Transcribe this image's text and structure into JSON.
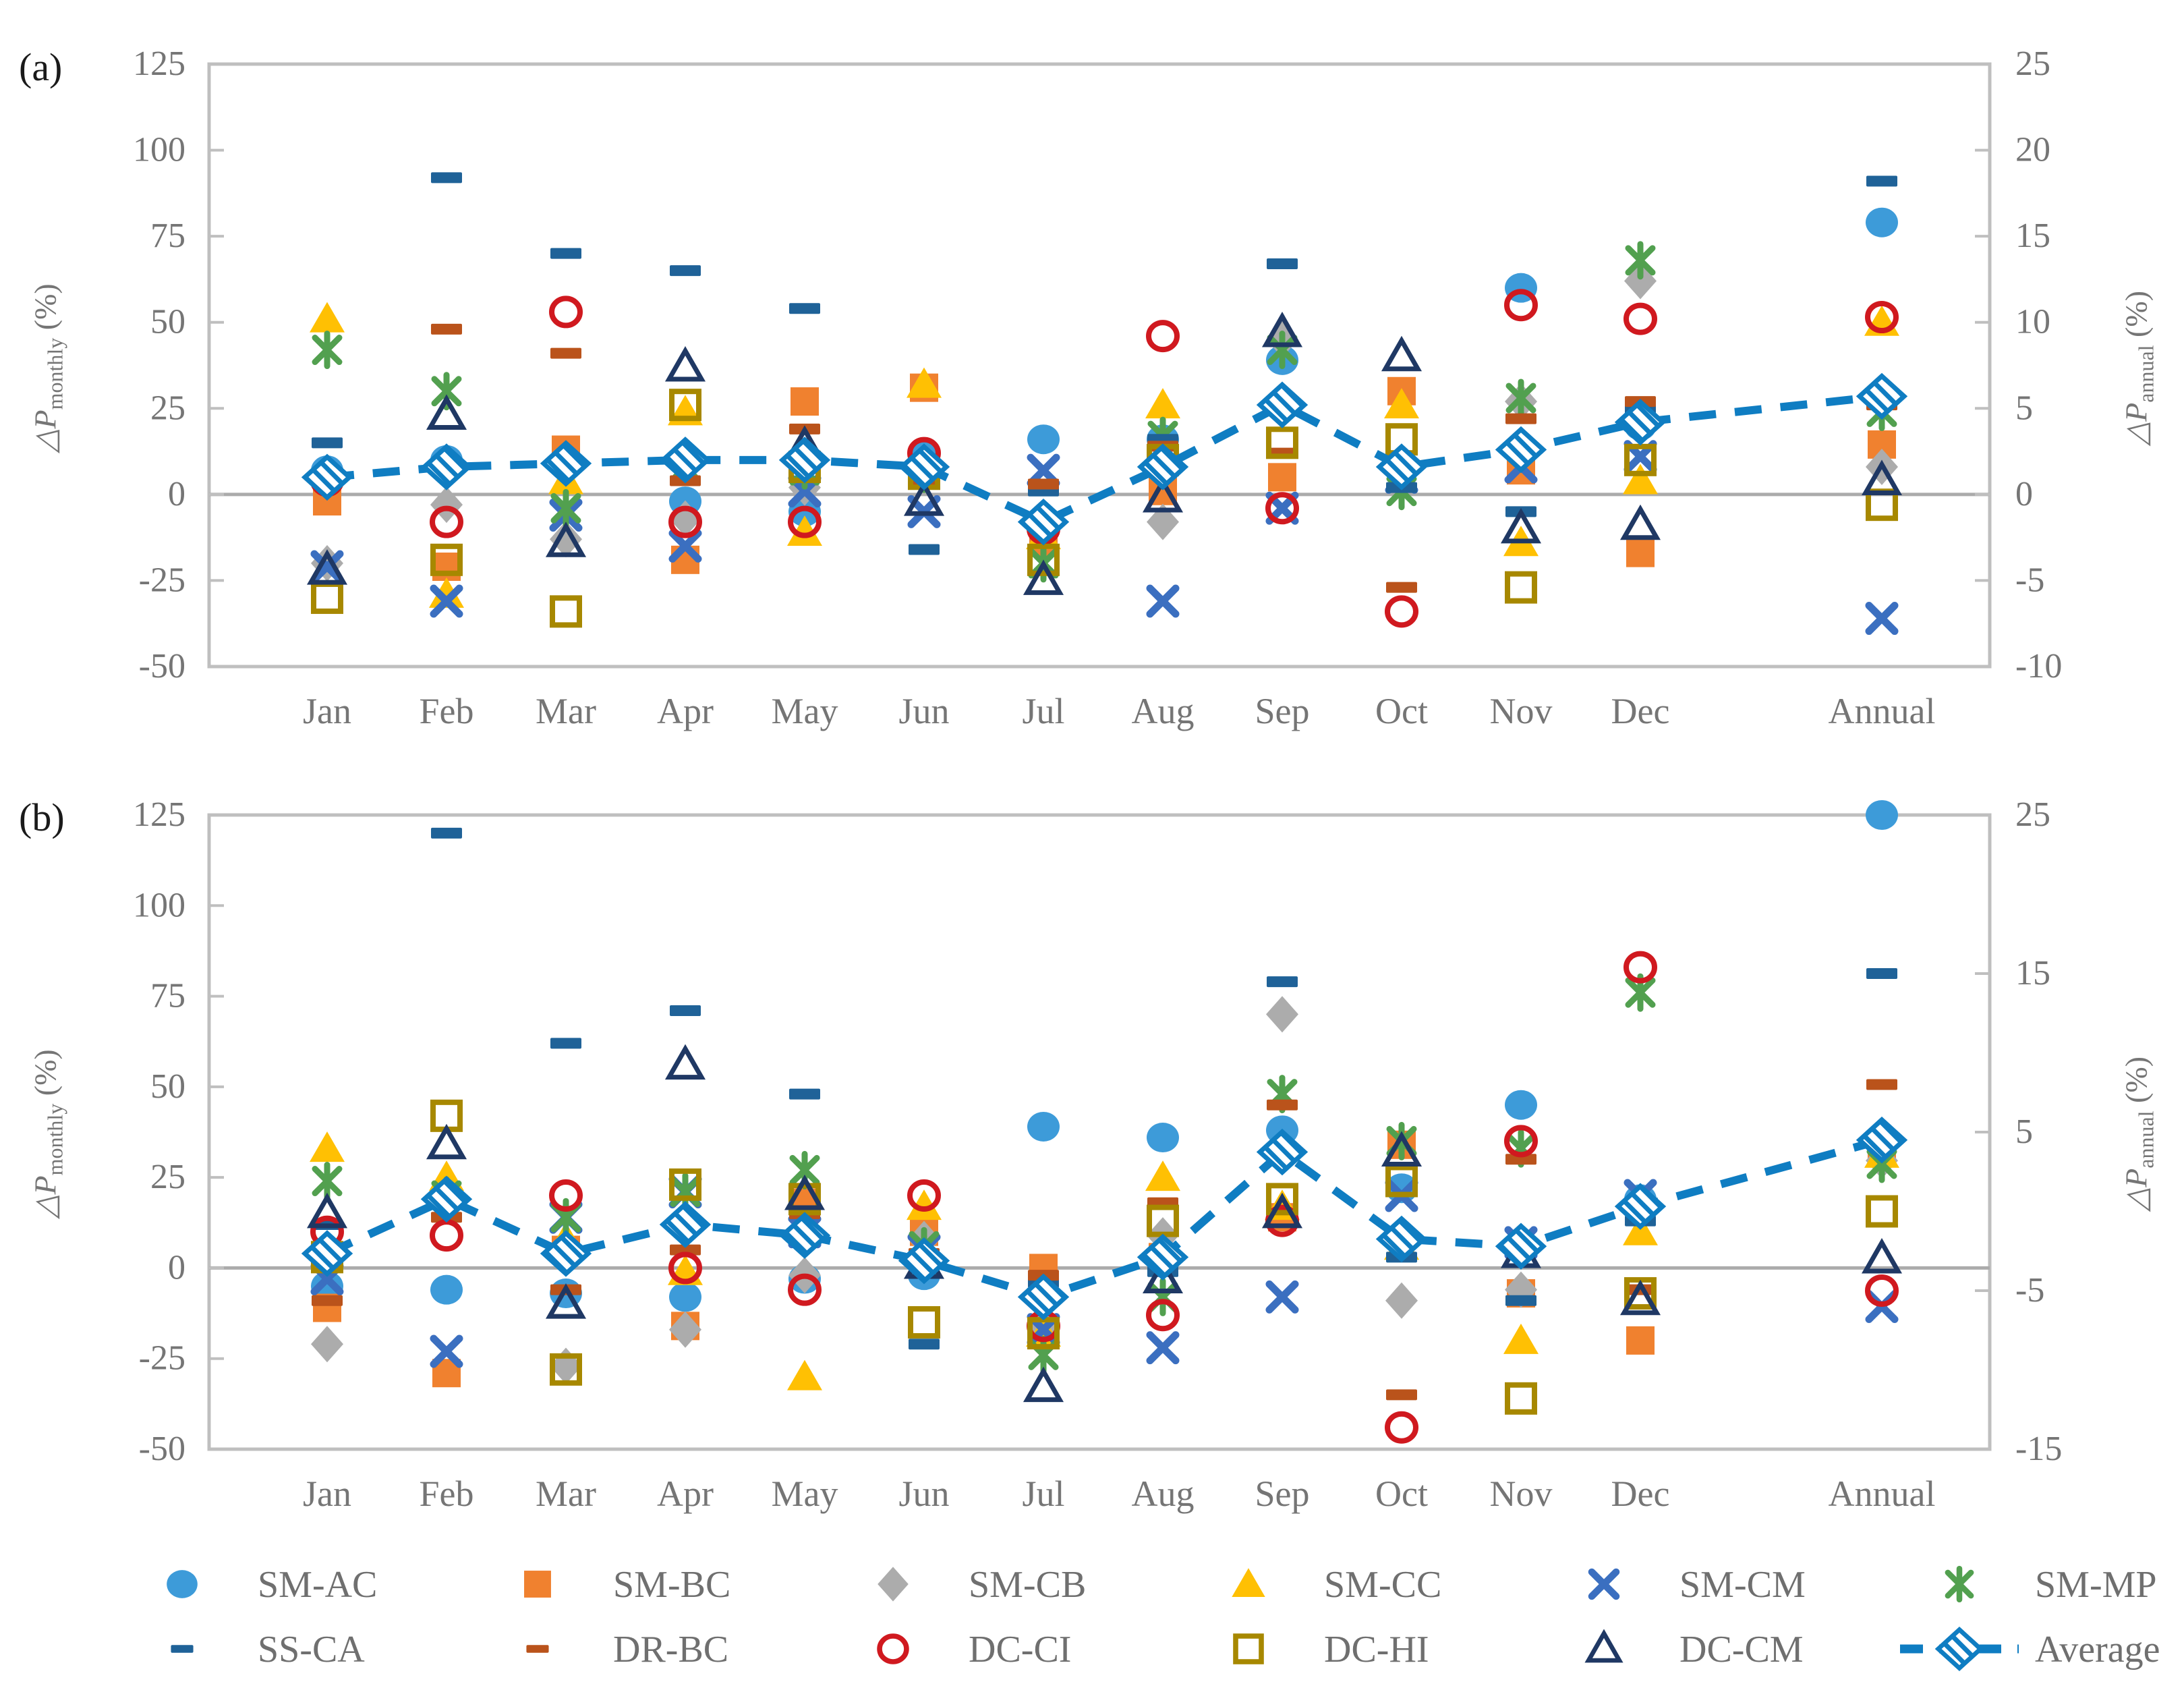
{
  "labels": {
    "panel_a": "(a)",
    "panel_b": "(b)",
    "delta_p": "△P",
    "monthly_sub": "monthly",
    "annual_sub": "annual",
    "percent": "(%)"
  },
  "colors": {
    "axis_text": "#757575",
    "plot_border": "#bfbfbf",
    "zero_line": "#ababab",
    "legend_text": "#6f6f6f",
    "average_line": "#0f7dc2"
  },
  "chart_data": [
    {
      "id": "a",
      "type": "scatter",
      "panel_label": "(a)",
      "categories": [
        "Jan",
        "Feb",
        "Mar",
        "Apr",
        "May",
        "Jun",
        "Jul",
        "Aug",
        "Sep",
        "Oct",
        "Nov",
        "Dec",
        "Annual"
      ],
      "y_left": {
        "label": "△P monthly (%)",
        "min": -50,
        "max": 125,
        "ticks": [
          125,
          100,
          75,
          50,
          25,
          0,
          -25,
          -50
        ]
      },
      "y_right": {
        "label": "△P annual (%)",
        "top": 25,
        "bottom": -10,
        "ticks": [
          25,
          20,
          15,
          10,
          5,
          0,
          -5,
          -10
        ]
      },
      "grid": "zero-line-only",
      "legend_position": "bottom",
      "series": [
        {
          "name": "SM-AC",
          "marker": "circle",
          "color": "#3d9bd9",
          "monthly": [
            7,
            10,
            10,
            -2,
            -5,
            11,
            16,
            16,
            39,
            8,
            60,
            20
          ],
          "annual_right": 15.8
        },
        {
          "name": "SM-BC",
          "marker": "square",
          "color": "#f0812f",
          "monthly": [
            -2,
            -21,
            13,
            -19,
            27,
            31,
            -14,
            1,
            5,
            30,
            7,
            -17
          ],
          "annual_right": 2.9
        },
        {
          "name": "SM-CB",
          "marker": "diamond",
          "color": "#acacac",
          "monthly": [
            -20,
            -3,
            -13,
            -7,
            2,
            7,
            -8,
            -8,
            45,
            7,
            27,
            62
          ],
          "annual_right": 1.6
        },
        {
          "name": "SM-CC",
          "marker": "triangle",
          "color": "#ffc003",
          "monthly": [
            51,
            -29,
            4,
            24,
            -11,
            32,
            -12,
            26,
            27,
            26,
            -14,
            4
          ],
          "annual_right": 10.0
        },
        {
          "name": "SM-CM",
          "marker": "x",
          "color": "#3b6fc0",
          "monthly": [
            -21,
            -31,
            -6,
            -15,
            1,
            -5,
            7,
            -31,
            -4,
            5,
            8,
            11
          ],
          "annual_right": -7.2
        },
        {
          "name": "SM-MP",
          "marker": "zh",
          "color": "#52a04f",
          "monthly": [
            42,
            30,
            -4,
            8,
            7,
            6,
            -20,
            17,
            42,
            1,
            28,
            68
          ],
          "annual_right": 4.8
        },
        {
          "name": "SS-CA",
          "marker": "hdash",
          "color": "#1f6298",
          "monthly": [
            15,
            92,
            70,
            65,
            54,
            -16,
            1,
            16,
            67,
            2,
            -5,
            25
          ],
          "annual_right": 18.2
        },
        {
          "name": "DR-BC",
          "marker": "hdash",
          "color": "#ba531b",
          "monthly": [
            4,
            48,
            41,
            4,
            19,
            3,
            3,
            14,
            12,
            -27,
            22,
            27
          ],
          "annual_right": 5.2
        },
        {
          "name": "DC-CI",
          "marker": "circle-o",
          "color": "#d0191f",
          "monthly": [
            4,
            -8,
            53,
            -8,
            -8,
            12,
            -10,
            46,
            -4,
            -34,
            55,
            51
          ],
          "annual_right": 10.3
        },
        {
          "name": "DC-HI",
          "marker": "square-o",
          "color": "#a78800",
          "monthly": [
            -30,
            -19,
            -34,
            26,
            8,
            6,
            -19,
            10,
            15,
            16,
            -27,
            10
          ],
          "annual_right": -0.6
        },
        {
          "name": "DC-CM",
          "marker": "triangle-o",
          "color": "#1f3864",
          "monthly": [
            -22,
            23,
            -14,
            37,
            14,
            -2,
            -25,
            -1,
            47,
            40,
            -10,
            -9
          ],
          "annual_right": 0.8
        },
        {
          "name": "Average",
          "marker": "avg",
          "color": "#0f7dc2",
          "monthly": [
            5,
            8,
            9,
            10,
            10,
            8,
            -8,
            8,
            26,
            8,
            13,
            21
          ],
          "annual_right": 5.7,
          "line": "dashed"
        }
      ]
    },
    {
      "id": "b",
      "type": "scatter",
      "panel_label": "(b)",
      "categories": [
        "Jan",
        "Feb",
        "Mar",
        "Apr",
        "May",
        "Jun",
        "Jul",
        "Aug",
        "Sep",
        "Oct",
        "Nov",
        "Dec",
        "Annual"
      ],
      "y_left": {
        "label": "△P monthly (%)",
        "min": -50,
        "max": 125,
        "ticks": [
          125,
          100,
          75,
          50,
          25,
          0,
          -25,
          -50
        ]
      },
      "y_right": {
        "label": "△P annual (%)",
        "top": 25,
        "bottom": -15,
        "ticks": [
          25,
          15,
          5,
          -5,
          -15
        ]
      },
      "grid": "zero-line-only",
      "legend_position": "bottom",
      "series": [
        {
          "name": "SM-AC",
          "marker": "circle",
          "color": "#3d9bd9",
          "monthly": [
            -5,
            -6,
            -7,
            -8,
            -3,
            -2,
            39,
            36,
            38,
            22,
            45,
            19
          ],
          "annual_right": 25
        },
        {
          "name": "SM-BC",
          "marker": "square",
          "color": "#f0812f",
          "monthly": [
            -11,
            -29,
            5,
            -16,
            18,
            10,
            0,
            3,
            14,
            34,
            -7,
            -20
          ],
          "annual_right": 4
        },
        {
          "name": "SM-CB",
          "marker": "diamond",
          "color": "#acacac",
          "monthly": [
            -21,
            17,
            -27,
            -17,
            -2,
            8,
            -16,
            9,
            70,
            -9,
            -6,
            18
          ],
          "annual_right": 3.2
        },
        {
          "name": "SM-CC",
          "marker": "triangle",
          "color": "#ffc003",
          "monthly": [
            33,
            25,
            8,
            -1,
            -30,
            17,
            -18,
            25,
            17,
            6,
            -20,
            10
          ],
          "annual_right": 3.6
        },
        {
          "name": "SM-CM",
          "marker": "x",
          "color": "#3b6fc0",
          "monthly": [
            -3,
            -23,
            14,
            21,
            10,
            5,
            -17,
            -22,
            -8,
            20,
            7,
            20
          ],
          "annual_right": -6
        },
        {
          "name": "SM-MP",
          "marker": "zh",
          "color": "#52a04f",
          "monthly": [
            24,
            20,
            14,
            21,
            27,
            6,
            -24,
            -8,
            48,
            35,
            33,
            76
          ],
          "annual_right": 3
        },
        {
          "name": "SS-CA",
          "marker": "hdash",
          "color": "#1f6298",
          "monthly": [
            12,
            120,
            62,
            71,
            48,
            -21,
            -4,
            -1,
            79,
            3,
            -9,
            13
          ],
          "annual_right": 15
        },
        {
          "name": "DR-BC",
          "marker": "hdash",
          "color": "#ba531b",
          "monthly": [
            -9,
            14,
            -6,
            5,
            15,
            4,
            -2,
            18,
            45,
            -35,
            30,
            -6
          ],
          "annual_right": 8
        },
        {
          "name": "DC-CI",
          "marker": "circle-o",
          "color": "#d0191f",
          "monthly": [
            10,
            9,
            20,
            0,
            -6,
            20,
            -16,
            -13,
            13,
            -44,
            35,
            83
          ],
          "annual_right": -5
        },
        {
          "name": "DC-HI",
          "marker": "square-o",
          "color": "#a78800",
          "monthly": [
            3,
            42,
            -28,
            23,
            19,
            -15,
            -18,
            13,
            19,
            24,
            -36,
            -7
          ],
          "annual_right": 0
        },
        {
          "name": "DC-CM",
          "marker": "triangle-o",
          "color": "#1f3864",
          "monthly": [
            15,
            34,
            -10,
            56,
            20,
            1,
            -33,
            -3,
            15,
            32,
            4,
            -9
          ],
          "annual_right": -3
        },
        {
          "name": "Average",
          "marker": "avg",
          "color": "#0f7dc2",
          "monthly": [
            4,
            19,
            4,
            12,
            9,
            2,
            -8,
            3,
            32,
            8,
            6,
            17
          ],
          "annual_right": 4.5,
          "line": "dashed"
        }
      ]
    }
  ],
  "legend": {
    "row1": [
      "SM-AC",
      "SM-BC",
      "SM-CB",
      "SM-CC",
      "SM-CM",
      "SM-MP"
    ],
    "row2": [
      "SS-CA",
      "DR-BC",
      "DC-CI",
      "DC-HI",
      "DC-CM",
      "Average"
    ]
  }
}
